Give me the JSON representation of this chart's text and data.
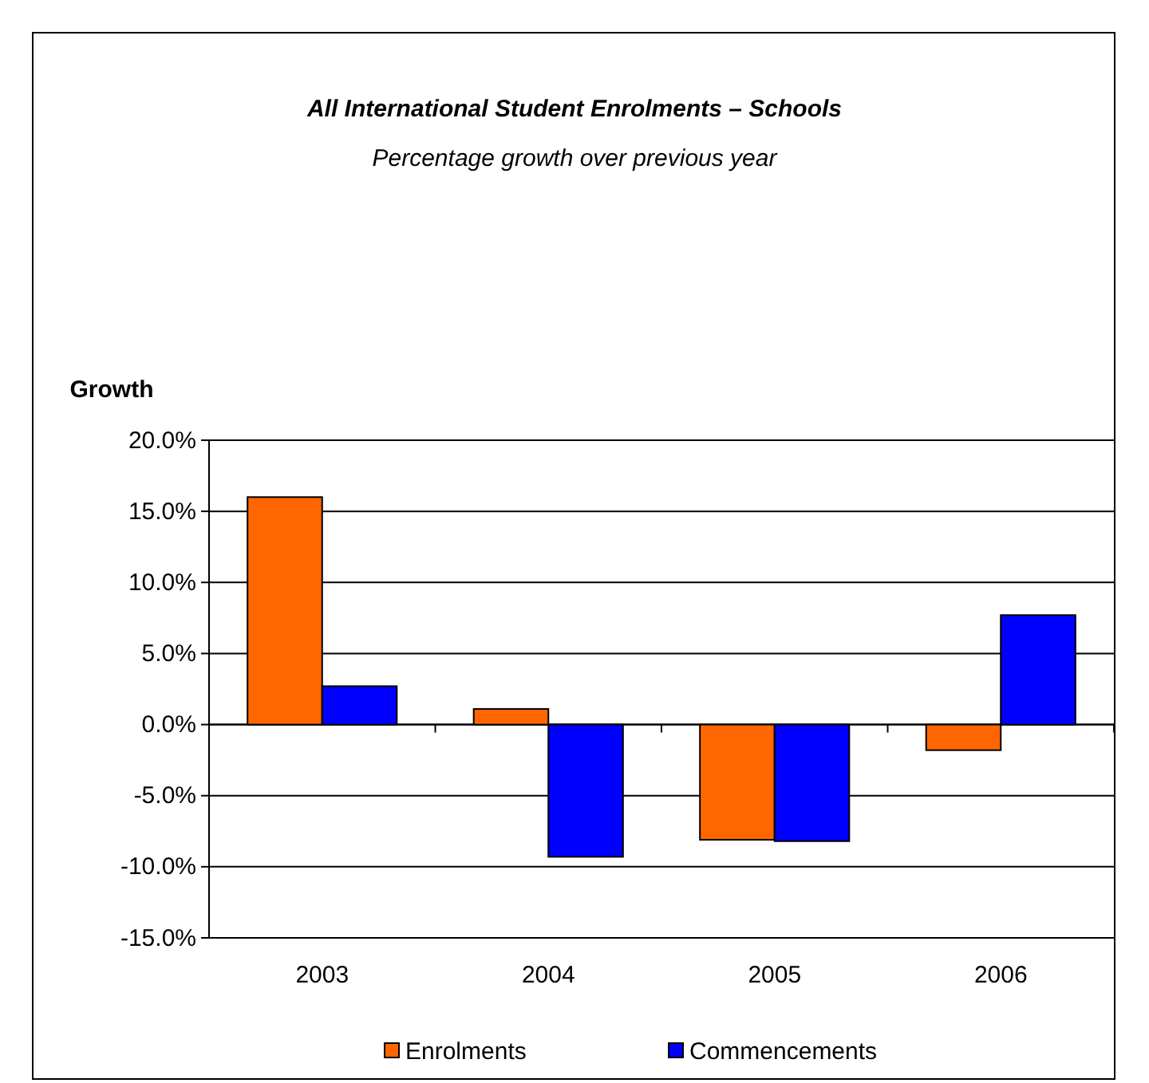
{
  "chart_data": {
    "type": "bar",
    "title": "All International Student Enrolments – Schools",
    "subtitle": "Percentage growth over previous year",
    "ylabel": "Growth",
    "categories": [
      "2003",
      "2004",
      "2005",
      "2006"
    ],
    "series": [
      {
        "name": "Enrolments",
        "color": "#ff6600",
        "values": [
          16.0,
          1.1,
          -8.1,
          -1.8
        ]
      },
      {
        "name": "Commencements",
        "color": "#0000ff",
        "values": [
          2.7,
          -9.3,
          -8.2,
          7.7
        ]
      }
    ],
    "ylim": [
      -15,
      20
    ],
    "yticks": [
      {
        "value": -15,
        "label": "-15.0%"
      },
      {
        "value": -10,
        "label": "-10.0%"
      },
      {
        "value": -5,
        "label": "-5.0%"
      },
      {
        "value": 0,
        "label": "0.0%"
      },
      {
        "value": 5,
        "label": "5.0%"
      },
      {
        "value": 10,
        "label": "10.0%"
      },
      {
        "value": 15,
        "label": "15.0%"
      },
      {
        "value": 20,
        "label": "20.0%"
      }
    ],
    "grid": "y",
    "legend": "bottom"
  }
}
